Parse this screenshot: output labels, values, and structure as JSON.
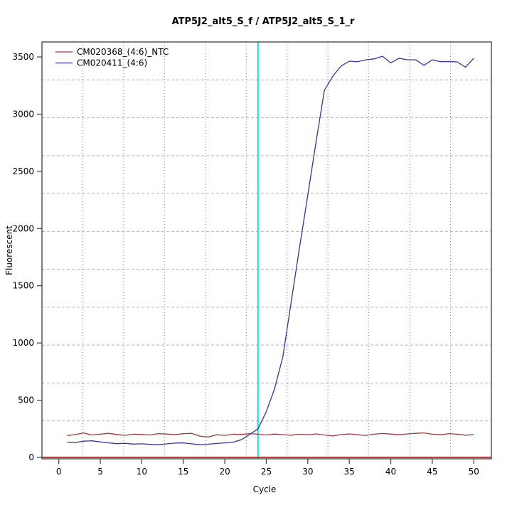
{
  "chart_data": {
    "type": "line",
    "title": "ATP5J2_alt5_S_f / ATP5J2_alt5_S_1_r",
    "xlabel": "Cycle",
    "ylabel": "Fluorescent",
    "x_ticks": [
      0,
      5,
      10,
      15,
      20,
      25,
      30,
      35,
      40,
      45,
      50
    ],
    "y_ticks": [
      0,
      500,
      1000,
      1500,
      2000,
      2500,
      3000,
      3500
    ],
    "xlim": [
      -2,
      52
    ],
    "ylim": [
      -12,
      3631
    ],
    "grid": {
      "nx": 11,
      "ny": 11,
      "vertical_style": "dotted",
      "horizontal_style": "dashed",
      "on": true
    },
    "legend_position": "top-left",
    "x": [
      1,
      2,
      3,
      4,
      5,
      6,
      7,
      8,
      9,
      10,
      11,
      12,
      13,
      14,
      15,
      16,
      17,
      18,
      19,
      20,
      21,
      22,
      23,
      24,
      25,
      26,
      27,
      28,
      29,
      30,
      31,
      32,
      33,
      34,
      35,
      36,
      37,
      38,
      39,
      40,
      41,
      42,
      43,
      44,
      45,
      46,
      47,
      48,
      49,
      50
    ],
    "series": [
      {
        "name": "CM020368_(4:6)_NTC",
        "color": "#A03A3A",
        "values": [
          191,
          199,
          214,
          196,
          203,
          210,
          200,
          193,
          203,
          200,
          196,
          208,
          204,
          199,
          207,
          210,
          186,
          178,
          198,
          192,
          203,
          200,
          208,
          203,
          196,
          204,
          199,
          194,
          203,
          197,
          205,
          196,
          188,
          199,
          205,
          198,
          192,
          203,
          209,
          204,
          198,
          205,
          210,
          214,
          203,
          198,
          208,
          203,
          194,
          199
        ]
      },
      {
        "name": "CM020411_(4:6)",
        "color": "#3535A4",
        "values": [
          133,
          130,
          142,
          145,
          135,
          127,
          120,
          123,
          116,
          119,
          114,
          111,
          118,
          125,
          127,
          119,
          110,
          115,
          122,
          127,
          133,
          155,
          200,
          250,
          400,
          600,
          880,
          1360,
          1835,
          2290,
          2760,
          3210,
          3330,
          3420,
          3463,
          3458,
          3475,
          3483,
          3506,
          3448,
          3489,
          3475,
          3475,
          3427,
          3475,
          3458,
          3460,
          3457,
          3411,
          3489
        ]
      }
    ],
    "threshold_line": {
      "y": 0,
      "color": "#C03A3A"
    },
    "ct_marker": {
      "x": 24,
      "color": "#00E5EE"
    }
  },
  "colors": {
    "grid_vertical": "#808080",
    "grid_horizontal": "#B3B3B3",
    "frame": "#3C3C3C",
    "background": "#FFFFFF"
  }
}
